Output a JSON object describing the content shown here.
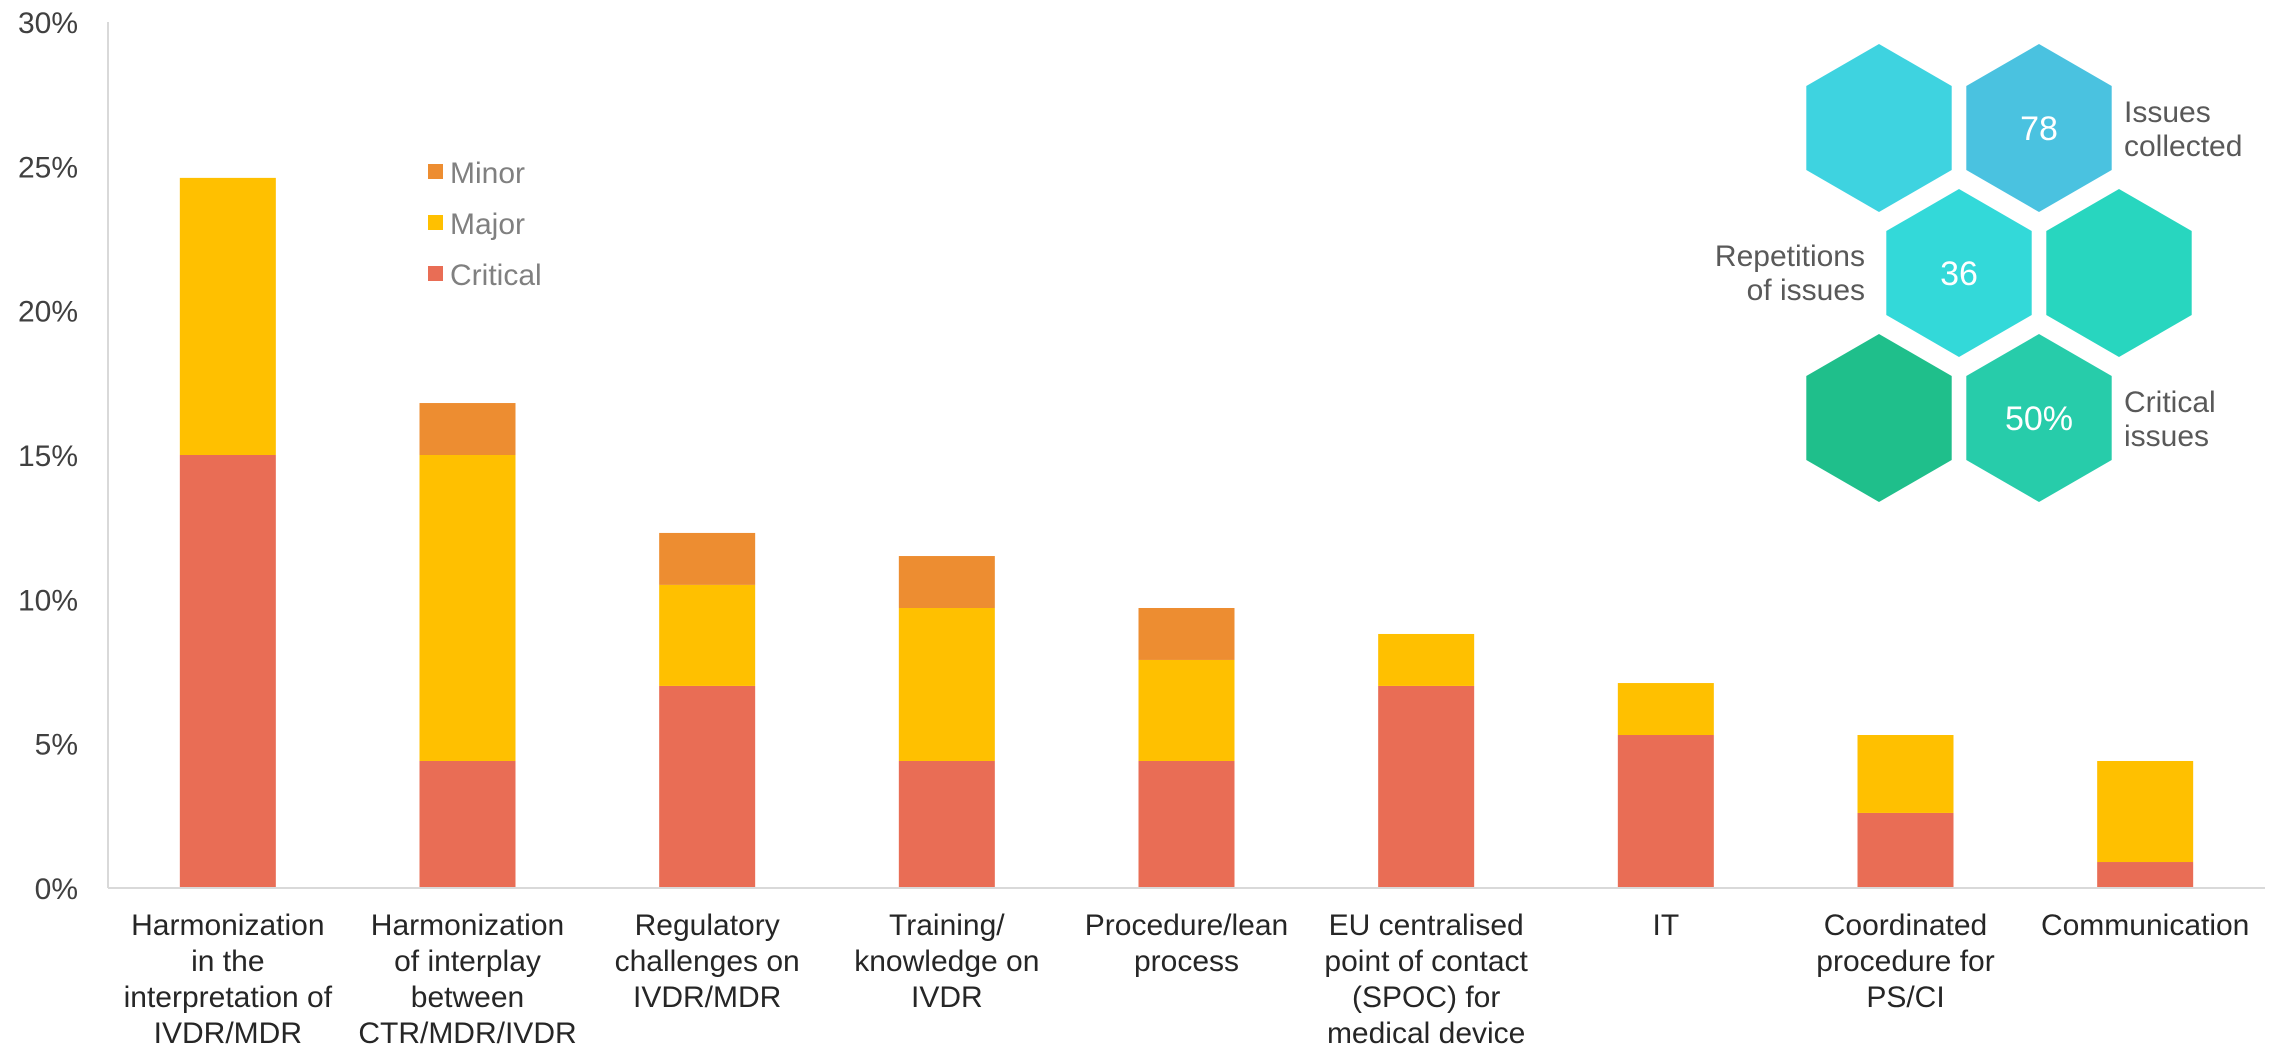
{
  "chart_data": {
    "type": "bar",
    "stacked": true,
    "categories": [
      [
        "Harmonization",
        "in the",
        "interpretation of",
        "IVDR/MDR"
      ],
      [
        "Harmonization",
        "of interplay",
        "between",
        "CTR/MDR/IVDR"
      ],
      [
        "Regulatory",
        "challenges on",
        "IVDR/MDR"
      ],
      [
        "Training/",
        "knowledge on",
        "IVDR"
      ],
      [
        "Procedure/lean",
        "process"
      ],
      [
        "EU centralised",
        "point of contact",
        "(SPOC) for",
        "medical device"
      ],
      [
        "IT"
      ],
      [
        "Coordinated",
        "procedure for",
        "PS/CI"
      ],
      [
        "Communication"
      ]
    ],
    "series": [
      {
        "name": "Critical",
        "color": "#E96D55",
        "values": [
          15.0,
          4.4,
          7.0,
          4.4,
          4.4,
          7.0,
          5.3,
          2.6,
          0.9
        ]
      },
      {
        "name": "Major",
        "color": "#FFC000",
        "values": [
          9.6,
          10.6,
          3.5,
          5.3,
          3.5,
          1.8,
          1.8,
          2.7,
          3.5
        ]
      },
      {
        "name": "Minor",
        "color": "#ED8D31",
        "values": [
          0,
          1.8,
          1.8,
          1.8,
          1.8,
          0,
          0,
          0,
          0
        ]
      }
    ],
    "ylim": [
      0,
      30
    ],
    "yticks": [
      "0%",
      "5%",
      "10%",
      "15%",
      "20%",
      "25%",
      "30%"
    ],
    "legend": {
      "items": [
        "Minor",
        "Major",
        "Critical"
      ],
      "placement": "top-left"
    },
    "grid": false
  },
  "infographic": {
    "cells": [
      {
        "value": "",
        "color": "#3ED3E0"
      },
      {
        "value": "78",
        "color": "#4AC2E0",
        "label": [
          "Issues",
          "collected"
        ]
      },
      {
        "value": "36",
        "color": "#33D9D9",
        "label": [
          "Repetitions",
          "of issues"
        ]
      },
      {
        "value": "",
        "color": "#28D6BF"
      },
      {
        "value": "",
        "color": "#1FBF8B"
      },
      {
        "value": "50%",
        "color": "#27CCAA",
        "label": [
          "Critical",
          "issues"
        ]
      }
    ]
  }
}
